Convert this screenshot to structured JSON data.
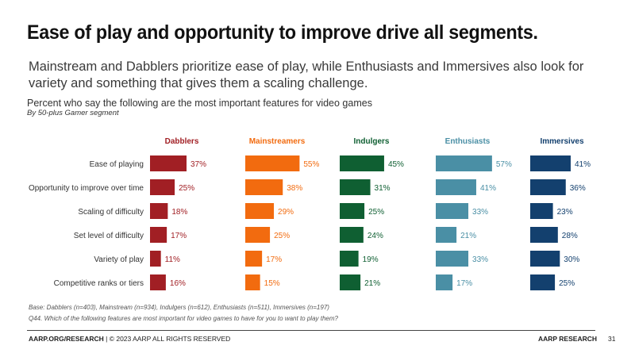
{
  "slide": {
    "title": "Ease of play and opportunity to improve drive all segments.",
    "subtitle": "Mainstream and Dabblers prioritize ease of play, while Enthusiasts and Immersives also look for variety and something that gives them a scaling challenge.",
    "base_note": "Base: Dabblers (n=403), Mainstream (n=934), Indulgers (n=612), Enthusiasts (n=511), Immersives (n=197)",
    "question_note": "Q44. Which of the following features are most important for video games to have for you to want to play them?",
    "footer_brand": "AARP.ORG/RESEARCH",
    "footer_rights": " | © 2023 AARP ALL RIGHTS RESERVED",
    "footer_right": "AARP RESEARCH",
    "page_number": "31"
  },
  "chart_data": {
    "type": "bar",
    "orientation": "horizontal",
    "title": "Percent who say the following are the most important features for video games",
    "subtitle": "By 50-plus Gamer segment",
    "categories": [
      "Ease of playing",
      "Opportunity to improve over time",
      "Scaling of difficulty",
      "Set level of difficulty",
      "Variety of play",
      "Competitive ranks or tiers"
    ],
    "series": [
      {
        "name": "Dabblers",
        "color": "#a11f24",
        "values": [
          37,
          25,
          18,
          17,
          11,
          16
        ]
      },
      {
        "name": "Mainstreamers",
        "color": "#f26b0f",
        "values": [
          55,
          38,
          29,
          25,
          17,
          15
        ]
      },
      {
        "name": "Indulgers",
        "color": "#0f5f32",
        "values": [
          45,
          31,
          25,
          24,
          19,
          21
        ]
      },
      {
        "name": "Enthusiasts",
        "color": "#4a8fa5",
        "values": [
          57,
          41,
          33,
          21,
          33,
          17
        ]
      },
      {
        "name": "Immersives",
        "color": "#13406e",
        "values": [
          41,
          36,
          23,
          28,
          30,
          25
        ]
      }
    ],
    "value_suffix": "%",
    "xlim": [
      0,
      100
    ],
    "grid": false,
    "legend": "panel headers"
  }
}
